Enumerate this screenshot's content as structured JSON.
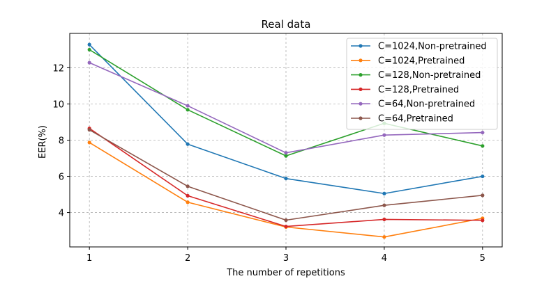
{
  "chart_data": {
    "type": "line",
    "title": "Real data",
    "xlabel": "The number of repetitions",
    "ylabel": "EER(%)",
    "x": [
      1,
      2,
      3,
      4,
      5
    ],
    "xlim": [
      0.8,
      5.2
    ],
    "ylim": [
      2.1,
      13.9
    ],
    "xticks": [
      1,
      2,
      3,
      4,
      5
    ],
    "yticks": [
      4,
      6,
      8,
      10,
      12
    ],
    "grid": true,
    "grid_style": "dashed",
    "legend_position": "top-right",
    "series": [
      {
        "name": "C=1024,Non-pretrained",
        "color": "#1f77b4",
        "values": [
          13.28,
          7.78,
          5.88,
          5.05,
          6.0
        ]
      },
      {
        "name": "C=1024,Pretrained",
        "color": "#ff7f0e",
        "values": [
          7.87,
          4.57,
          3.2,
          2.65,
          3.68
        ]
      },
      {
        "name": "C=128,Non-pretrained",
        "color": "#2ca02c",
        "values": [
          13.0,
          9.68,
          7.13,
          8.93,
          7.68
        ]
      },
      {
        "name": "C=128,Pretrained",
        "color": "#d62728",
        "values": [
          8.65,
          4.93,
          3.23,
          3.62,
          3.57
        ]
      },
      {
        "name": "C=64,Non-pretrained",
        "color": "#9467bd",
        "values": [
          12.28,
          9.9,
          7.3,
          8.28,
          8.42
        ]
      },
      {
        "name": "C=64,Pretrained",
        "color": "#8c564b",
        "values": [
          8.57,
          5.45,
          3.58,
          4.4,
          4.95
        ]
      }
    ]
  }
}
